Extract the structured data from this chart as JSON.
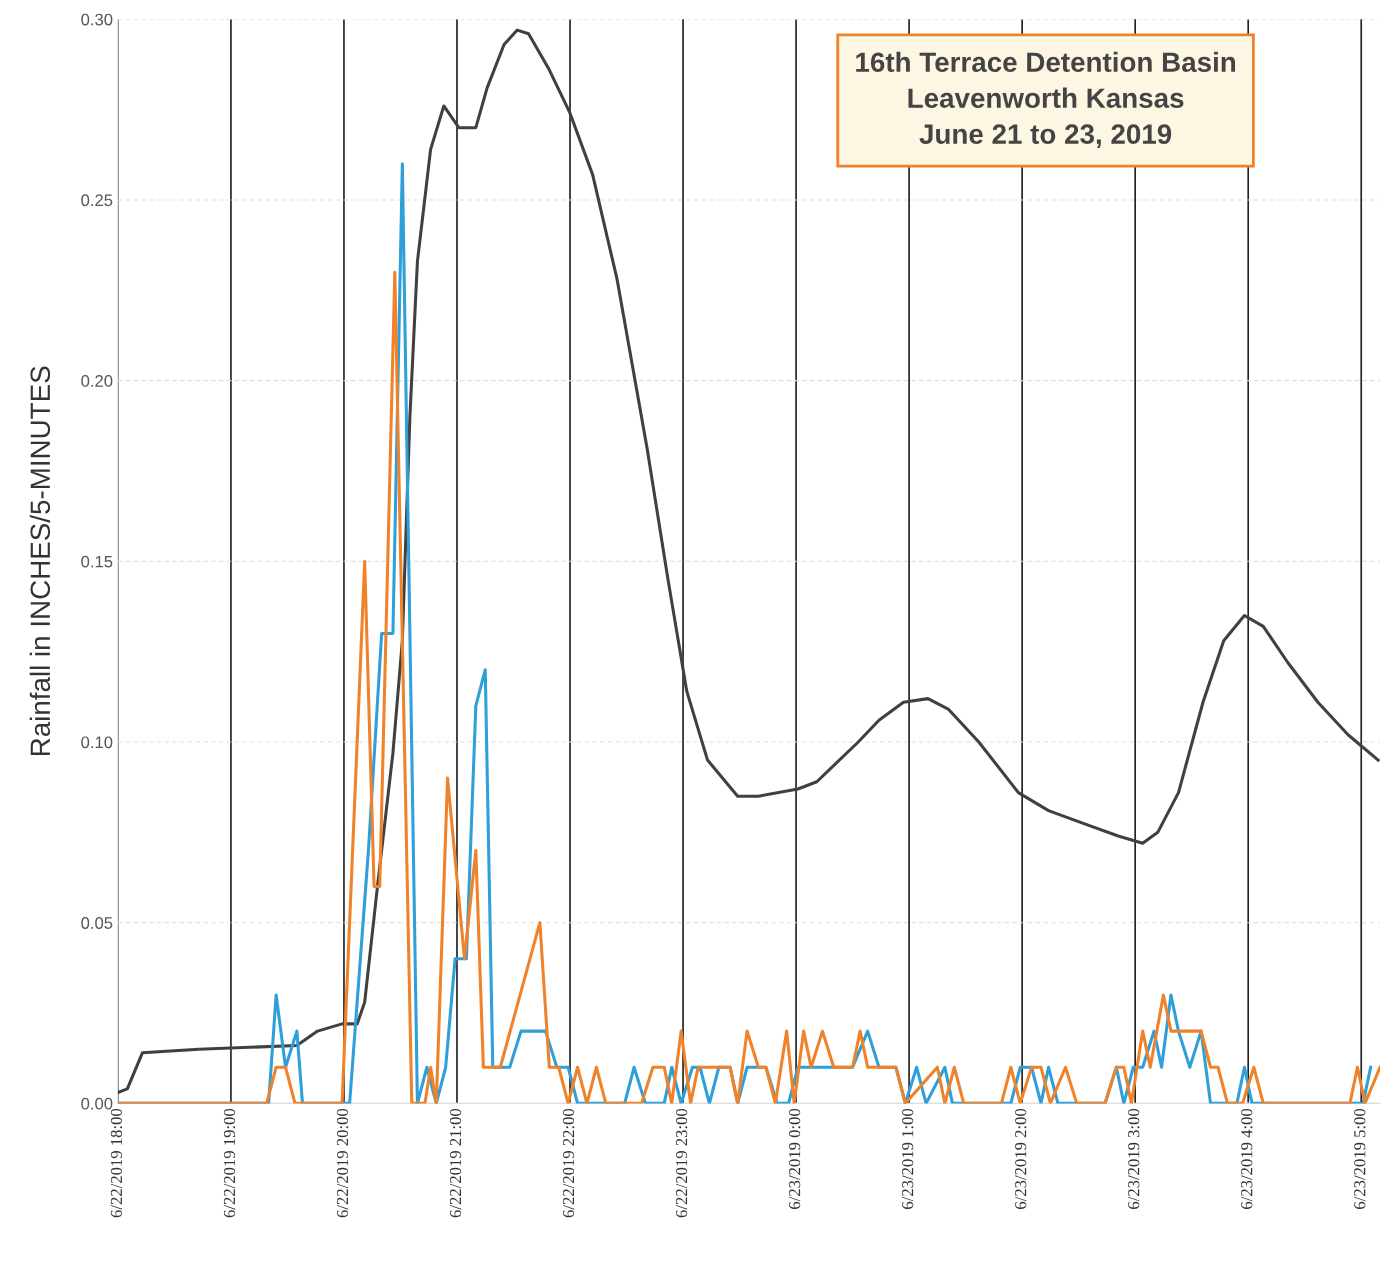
{
  "chart_data": {
    "type": "line",
    "title": "16th Terrace Detention Basin\nLeavenworth Kansas\nJune 21 to 23, 2019",
    "ylabel": "Rainfall in INCHES/5-MINUTES",
    "xlim": [
      "2019-06-22T18:00",
      "2019-06-23T05:10"
    ],
    "ylim": [
      0,
      0.3
    ],
    "xticks": [
      {
        "value": "2019-06-22T18:00",
        "label": "6/22/2019 18:00"
      },
      {
        "value": "2019-06-22T19:00",
        "label": "6/22/2019 19:00"
      },
      {
        "value": "2019-06-22T20:00",
        "label": "6/22/2019 20:00"
      },
      {
        "value": "2019-06-22T21:00",
        "label": "6/22/2019 21:00"
      },
      {
        "value": "2019-06-22T22:00",
        "label": "6/22/2019 22:00"
      },
      {
        "value": "2019-06-22T23:00",
        "label": "6/22/2019 23:00"
      },
      {
        "value": "2019-06-23T00:00",
        "label": "6/23/2019 0:00"
      },
      {
        "value": "2019-06-23T01:00",
        "label": "6/23/2019 1:00"
      },
      {
        "value": "2019-06-23T02:00",
        "label": "6/23/2019 2:00"
      },
      {
        "value": "2019-06-23T03:00",
        "label": "6/23/2019 3:00"
      },
      {
        "value": "2019-06-23T04:00",
        "label": "6/23/2019 4:00"
      },
      {
        "value": "2019-06-23T05:00",
        "label": "6/23/2019 5:00"
      }
    ],
    "yticks": [
      {
        "value": 0,
        "label": "0.00"
      },
      {
        "value": 0.05,
        "label": "0.05"
      },
      {
        "value": 0.1,
        "label": "0.10"
      },
      {
        "value": 0.15,
        "label": "0.15"
      },
      {
        "value": 0.2,
        "label": "0.20"
      },
      {
        "value": 0.25,
        "label": "0.25"
      },
      {
        "value": 0.3,
        "label": "0.30"
      }
    ],
    "grid": true,
    "marker": "none",
    "line_style": "solid",
    "series": [
      {
        "color": "#404040",
        "x": [
          "2019-06-22T18:00",
          "2019-06-22T18:05",
          "2019-06-22T18:13",
          "2019-06-22T18:43",
          "2019-06-22T19:35",
          "2019-06-22T19:46",
          "2019-06-22T19:59",
          "2019-06-22T20:07",
          "2019-06-22T20:11",
          "2019-06-22T20:18",
          "2019-06-22T20:26",
          "2019-06-22T20:31",
          "2019-06-22T20:35",
          "2019-06-22T20:39",
          "2019-06-22T20:46",
          "2019-06-22T20:53",
          "2019-06-22T21:01",
          "2019-06-22T21:10",
          "2019-06-22T21:16",
          "2019-06-22T21:25",
          "2019-06-22T21:32",
          "2019-06-22T21:38",
          "2019-06-22T21:49",
          "2019-06-22T22:00",
          "2019-06-22T22:12",
          "2019-06-22T22:25",
          "2019-06-22T22:41",
          "2019-06-22T22:52",
          "2019-06-22T23:02",
          "2019-06-22T23:13",
          "2019-06-22T23:29",
          "2019-06-22T23:40",
          "2019-06-23T00:01",
          "2019-06-23T00:11",
          "2019-06-23T00:33",
          "2019-06-23T00:44",
          "2019-06-23T00:57",
          "2019-06-23T01:10",
          "2019-06-23T01:21",
          "2019-06-23T01:37",
          "2019-06-23T01:58",
          "2019-06-23T02:14",
          "2019-06-23T02:35",
          "2019-06-23T02:51",
          "2019-06-23T03:04",
          "2019-06-23T03:12",
          "2019-06-23T03:23",
          "2019-06-23T03:36",
          "2019-06-23T03:47",
          "2019-06-23T03:58",
          "2019-06-23T04:08",
          "2019-06-23T04:21",
          "2019-06-23T04:37",
          "2019-06-23T04:53",
          "2019-06-23T05:09"
        ],
        "values": [
          0.003,
          0.004,
          0.014,
          0.015,
          0.016,
          0.02,
          0.022,
          0.022,
          0.028,
          0.061,
          0.097,
          0.128,
          0.19,
          0.233,
          0.264,
          0.276,
          0.27,
          0.27,
          0.281,
          0.293,
          0.297,
          0.296,
          0.286,
          0.274,
          0.257,
          0.228,
          0.181,
          0.145,
          0.114,
          0.095,
          0.085,
          0.085,
          0.087,
          0.089,
          0.1,
          0.106,
          0.111,
          0.112,
          0.109,
          0.1,
          0.086,
          0.081,
          0.077,
          0.074,
          0.072,
          0.075,
          0.086,
          0.111,
          0.128,
          0.135,
          0.132,
          0.122,
          0.111,
          0.102,
          0.095
        ]
      },
      {
        "color": "#2e9fd8",
        "x": [
          "2019-06-22T18:00",
          "2019-06-22T19:20",
          "2019-06-22T19:24",
          "2019-06-22T19:29",
          "2019-06-22T19:35",
          "2019-06-22T19:38",
          "2019-06-22T20:03",
          "2019-06-22T20:13",
          "2019-06-22T20:20",
          "2019-06-22T20:26",
          "2019-06-22T20:31",
          "2019-06-22T20:39",
          "2019-06-22T20:44",
          "2019-06-22T20:49",
          "2019-06-22T20:54",
          "2019-06-22T20:59",
          "2019-06-22T21:05",
          "2019-06-22T21:10",
          "2019-06-22T21:15",
          "2019-06-22T21:19",
          "2019-06-22T21:28",
          "2019-06-22T21:34",
          "2019-06-22T21:47",
          "2019-06-22T21:53",
          "2019-06-22T21:59",
          "2019-06-22T22:04",
          "2019-06-22T22:19",
          "2019-06-22T22:29",
          "2019-06-22T22:34",
          "2019-06-22T22:40",
          "2019-06-22T22:50",
          "2019-06-22T22:54",
          "2019-06-22T22:59",
          "2019-06-22T23:05",
          "2019-06-22T23:09",
          "2019-06-22T23:14",
          "2019-06-22T23:19",
          "2019-06-22T23:25",
          "2019-06-22T23:29",
          "2019-06-22T23:34",
          "2019-06-22T23:44",
          "2019-06-22T23:50",
          "2019-06-22T23:56",
          "2019-06-23T00:01",
          "2019-06-23T00:07",
          "2019-06-23T00:13",
          "2019-06-23T00:30",
          "2019-06-23T00:38",
          "2019-06-23T00:44",
          "2019-06-23T00:53",
          "2019-06-23T00:58",
          "2019-06-23T01:04",
          "2019-06-23T01:09",
          "2019-06-23T01:19",
          "2019-06-23T01:23",
          "2019-06-23T01:29",
          "2019-06-23T01:54",
          "2019-06-23T01:59",
          "2019-06-23T02:05",
          "2019-06-23T02:10",
          "2019-06-23T02:14",
          "2019-06-23T02:19",
          "2019-06-23T02:44",
          "2019-06-23T02:50",
          "2019-06-23T02:54",
          "2019-06-23T02:59",
          "2019-06-23T03:04",
          "2019-06-23T03:10",
          "2019-06-23T03:14",
          "2019-06-23T03:19",
          "2019-06-23T03:23",
          "2019-06-23T03:29",
          "2019-06-23T03:35",
          "2019-06-23T03:40",
          "2019-06-23T03:54",
          "2019-06-23T03:58",
          "2019-06-23T04:02",
          "2019-06-23T04:08",
          "2019-06-23T04:57",
          "2019-06-23T05:01",
          "2019-06-23T05:05"
        ],
        "values": [
          0,
          0,
          0.03,
          0.01,
          0.02,
          0,
          0,
          0.07,
          0.13,
          0.13,
          0.26,
          0,
          0.01,
          0,
          0.01,
          0.04,
          0.04,
          0.11,
          0.12,
          0.01,
          0.01,
          0.02,
          0.02,
          0.01,
          0.01,
          0,
          0,
          0,
          0.01,
          0,
          0,
          0.01,
          0,
          0.01,
          0.01,
          0,
          0.01,
          0.01,
          0,
          0.01,
          0.01,
          0,
          0,
          0.01,
          0.01,
          0.01,
          0.01,
          0.02,
          0.01,
          0.01,
          0,
          0.01,
          0,
          0.01,
          0,
          0,
          0,
          0.01,
          0.01,
          0,
          0.01,
          0,
          0,
          0.01,
          0,
          0.01,
          0.01,
          0.02,
          0.01,
          0.03,
          0.02,
          0.01,
          0.02,
          0,
          0,
          0.01,
          0,
          0,
          0,
          0,
          0.01
        ]
      },
      {
        "color": "#f0822a",
        "x": [
          "2019-06-22T18:00",
          "2019-06-22T19:19",
          "2019-06-22T19:24",
          "2019-06-22T19:29",
          "2019-06-22T19:34",
          "2019-06-22T19:59",
          "2019-06-22T20:11",
          "2019-06-22T20:16",
          "2019-06-22T20:19",
          "2019-06-22T20:27",
          "2019-06-22T20:36",
          "2019-06-22T20:43",
          "2019-06-22T20:46",
          "2019-06-22T20:49",
          "2019-06-22T20:55",
          "2019-06-22T21:04",
          "2019-06-22T21:10",
          "2019-06-22T21:14",
          "2019-06-22T21:23",
          "2019-06-22T21:44",
          "2019-06-22T21:49",
          "2019-06-22T21:54",
          "2019-06-22T21:59",
          "2019-06-22T22:04",
          "2019-06-22T22:09",
          "2019-06-22T22:14",
          "2019-06-22T22:19",
          "2019-06-22T22:38",
          "2019-06-22T22:44",
          "2019-06-22T22:50",
          "2019-06-22T22:54",
          "2019-06-22T22:59",
          "2019-06-22T23:04",
          "2019-06-22T23:08",
          "2019-06-22T23:25",
          "2019-06-22T23:29",
          "2019-06-22T23:34",
          "2019-06-22T23:40",
          "2019-06-22T23:44",
          "2019-06-22T23:49",
          "2019-06-22T23:55",
          "2019-06-22T23:59",
          "2019-06-23T00:04",
          "2019-06-23T00:08",
          "2019-06-23T00:14",
          "2019-06-23T00:20",
          "2019-06-23T00:30",
          "2019-06-23T00:34",
          "2019-06-23T00:38",
          "2019-06-23T00:53",
          "2019-06-23T00:58",
          "2019-06-23T01:15",
          "2019-06-23T01:19",
          "2019-06-23T01:24",
          "2019-06-23T01:29",
          "2019-06-23T01:49",
          "2019-06-23T01:54",
          "2019-06-23T01:59",
          "2019-06-23T02:05",
          "2019-06-23T02:10",
          "2019-06-23T02:15",
          "2019-06-23T02:23",
          "2019-06-23T02:29",
          "2019-06-23T02:44",
          "2019-06-23T02:50",
          "2019-06-23T02:54",
          "2019-06-23T02:58",
          "2019-06-23T03:04",
          "2019-06-23T03:08",
          "2019-06-23T03:15",
          "2019-06-23T03:19",
          "2019-06-23T03:35",
          "2019-06-23T03:40",
          "2019-06-23T03:44",
          "2019-06-23T03:49",
          "2019-06-23T03:57",
          "2019-06-23T04:03",
          "2019-06-23T04:08",
          "2019-06-23T04:54",
          "2019-06-23T04:58",
          "2019-06-23T05:02",
          "2019-06-23T05:10"
        ],
        "values": [
          0,
          0,
          0.01,
          0.01,
          0,
          0,
          0.15,
          0.06,
          0.06,
          0.23,
          0,
          0,
          0.01,
          0,
          0.09,
          0.04,
          0.07,
          0.01,
          0.01,
          0.05,
          0.01,
          0.01,
          0,
          0.01,
          0,
          0.01,
          0,
          0,
          0.01,
          0.01,
          0,
          0.02,
          0,
          0.01,
          0.01,
          0,
          0.02,
          0.01,
          0.01,
          0,
          0.02,
          0,
          0.02,
          0.01,
          0.02,
          0.01,
          0.01,
          0.02,
          0.01,
          0.01,
          0,
          0.01,
          0,
          0.01,
          0,
          0,
          0.01,
          0,
          0.01,
          0.01,
          0,
          0.01,
          0,
          0,
          0.01,
          0.01,
          0,
          0.02,
          0.01,
          0.03,
          0.02,
          0.02,
          0.01,
          0.01,
          0,
          0,
          0.01,
          0,
          0,
          0.01,
          0,
          0.01
        ]
      }
    ]
  }
}
